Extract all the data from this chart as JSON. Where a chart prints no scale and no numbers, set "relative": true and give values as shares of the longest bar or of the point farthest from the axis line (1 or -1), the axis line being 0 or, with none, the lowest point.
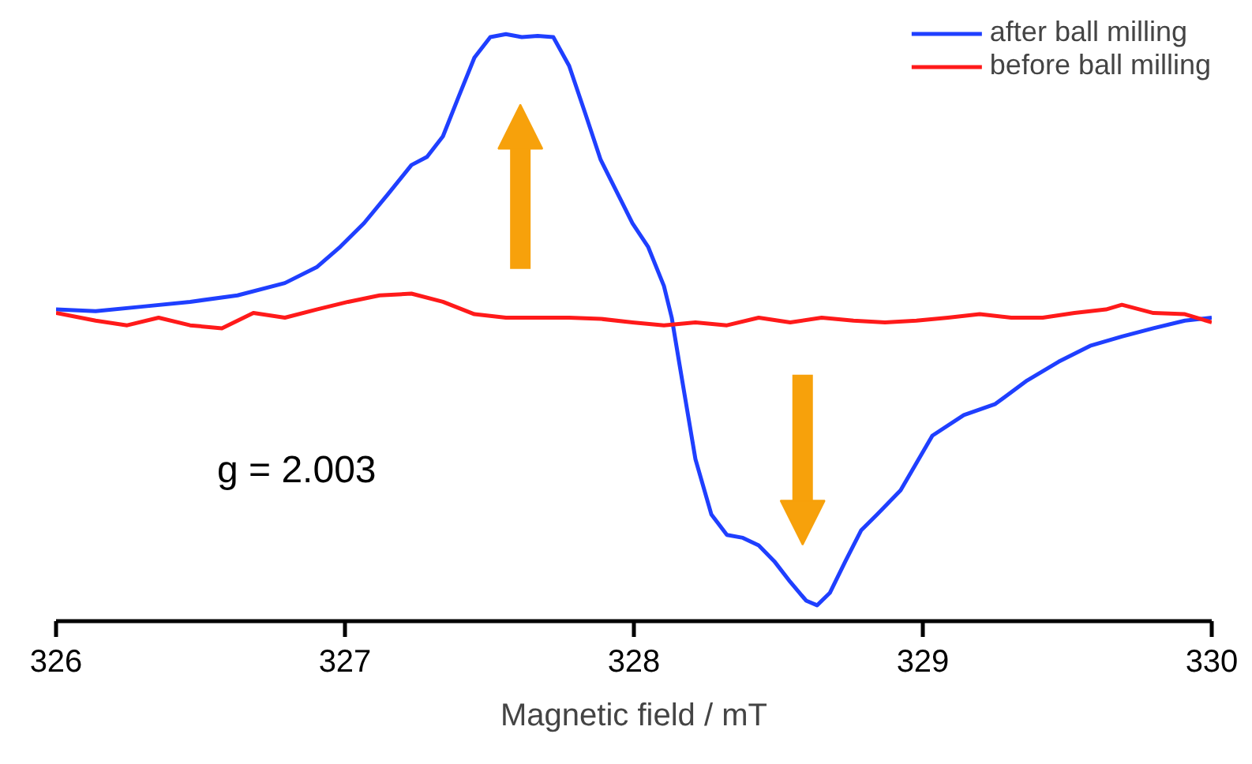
{
  "chart_data": {
    "type": "line",
    "relative": true,
    "xlabel": "Magnetic field / mT",
    "xlim": [
      326,
      330
    ],
    "xticks": [
      326,
      327,
      328,
      329,
      330
    ],
    "grid": false,
    "legend": "top right",
    "tick_labels": "x",
    "annotations": [
      "g = 2.003"
    ],
    "series": [
      {
        "name": "after ball milling",
        "color": "#1f3fff",
        "x": [
          326.0,
          326.137,
          326.301,
          326.464,
          326.628,
          326.792,
          326.902,
          326.984,
          327.066,
          327.148,
          327.23,
          327.284,
          327.339,
          327.393,
          327.448,
          327.503,
          327.557,
          327.612,
          327.667,
          327.721,
          327.776,
          327.831,
          327.885,
          327.94,
          327.995,
          328.049,
          328.104,
          328.131,
          328.158,
          328.213,
          328.268,
          328.322,
          328.377,
          328.432,
          328.486,
          328.541,
          328.596,
          328.634,
          328.678,
          328.732,
          328.787,
          328.842,
          328.923,
          329.033,
          329.142,
          329.251,
          329.361,
          329.47,
          329.579,
          329.689,
          329.798,
          329.907,
          330.0
        ],
        "values": [
          0.531,
          0.528,
          0.536,
          0.544,
          0.555,
          0.576,
          0.603,
          0.638,
          0.678,
          0.727,
          0.777,
          0.791,
          0.826,
          0.893,
          0.96,
          0.995,
          1.0,
          0.995,
          0.997,
          0.995,
          0.946,
          0.866,
          0.786,
          0.732,
          0.678,
          0.638,
          0.571,
          0.517,
          0.437,
          0.276,
          0.182,
          0.147,
          0.142,
          0.129,
          0.102,
          0.067,
          0.035,
          0.027,
          0.048,
          0.102,
          0.155,
          0.182,
          0.223,
          0.316,
          0.351,
          0.37,
          0.41,
          0.442,
          0.469,
          0.485,
          0.499,
          0.512,
          0.517
        ]
      },
      {
        "name": "before ball milling",
        "color": "#ff1a1a",
        "x": [
          326.0,
          326.137,
          326.246,
          326.355,
          326.464,
          326.574,
          326.683,
          326.792,
          326.902,
          327.011,
          327.12,
          327.23,
          327.339,
          327.448,
          327.557,
          327.667,
          327.776,
          327.885,
          327.995,
          328.104,
          328.213,
          328.322,
          328.432,
          328.541,
          328.65,
          328.76,
          328.869,
          328.978,
          329.087,
          329.197,
          329.306,
          329.415,
          329.525,
          329.634,
          329.689,
          329.798,
          329.907,
          330.0
        ],
        "values": [
          0.525,
          0.512,
          0.504,
          0.517,
          0.504,
          0.499,
          0.525,
          0.517,
          0.531,
          0.544,
          0.555,
          0.558,
          0.544,
          0.523,
          0.517,
          0.517,
          0.517,
          0.515,
          0.509,
          0.504,
          0.509,
          0.504,
          0.517,
          0.509,
          0.517,
          0.512,
          0.509,
          0.512,
          0.517,
          0.523,
          0.517,
          0.517,
          0.525,
          0.531,
          0.539,
          0.525,
          0.523,
          0.509
        ]
      }
    ]
  }
}
